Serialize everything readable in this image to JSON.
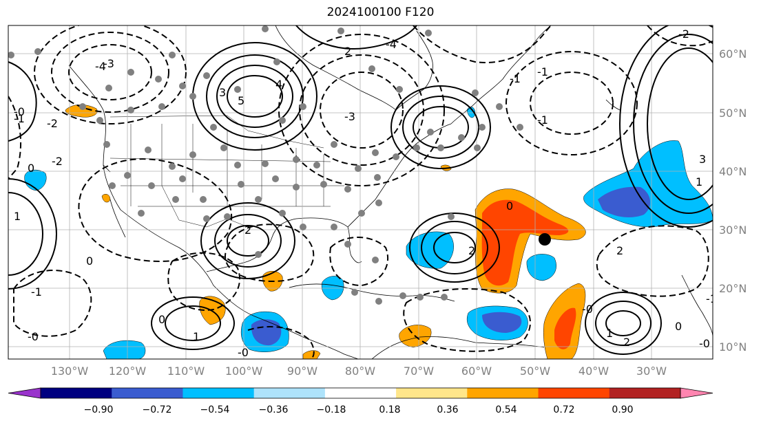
{
  "title": "2024100100 F120",
  "map": {
    "lon_labels": [
      "130°W",
      "120°W",
      "110°W",
      "100°W",
      "90°W",
      "80°W",
      "70°W",
      "60°W",
      "50°W",
      "40°W",
      "30°W"
    ],
    "lat_labels": [
      "60°N",
      "50°N",
      "40°N",
      "30°N",
      "20°N",
      "10°N"
    ],
    "contour_labels": [
      "-4",
      "-3",
      "-2",
      "-1",
      "-0",
      "0",
      "1",
      "2",
      "3",
      "4",
      "5",
      "-2",
      "-3",
      "-4",
      "2",
      "-1",
      "0",
      "1",
      "3",
      "-2",
      "-0",
      "0",
      "-1",
      "2",
      "-1",
      "2",
      "-0",
      "0",
      "1",
      "-0",
      "-1",
      "2",
      "0",
      "-1",
      "-0",
      "1"
    ],
    "colors": {
      "positive_contour": "#000000",
      "negative_contour": "#000000",
      "station_dot": "#808080",
      "storm_marker": "#000000"
    }
  },
  "colorbar": {
    "ticks": [
      "−0.90",
      "−0.72",
      "−0.54",
      "−0.36",
      "−0.18",
      "0.18",
      "0.36",
      "0.54",
      "0.72",
      "0.90"
    ],
    "colors": [
      "#9933cc",
      "#000080",
      "#3a5cd0",
      "#00bfff",
      "#aee3fb",
      "#ffffff",
      "#ffe68a",
      "#ffa500",
      "#ff4500",
      "#b22222",
      "#ff85b0"
    ]
  }
}
